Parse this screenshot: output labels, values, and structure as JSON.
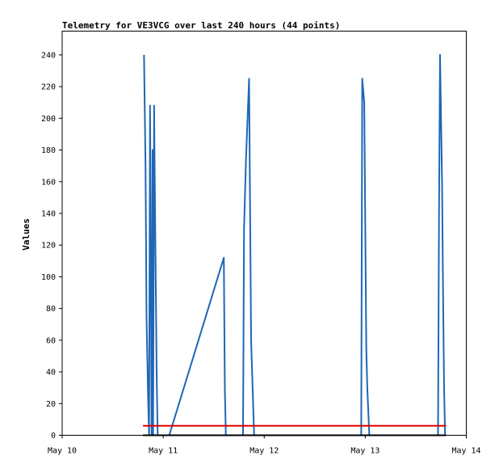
{
  "chart_data": {
    "type": "line",
    "title": "Telemetry for VE3VCG over last 240 hours (44 points)",
    "xlabel": "",
    "ylabel": "Values",
    "x_ticks": [
      "May 10",
      "May 11",
      "May 12",
      "May 13",
      "May 14"
    ],
    "x_tick_positions_days": [
      0,
      1,
      2,
      3,
      4
    ],
    "xlim_days": [
      0,
      4
    ],
    "ylim": [
      0,
      255
    ],
    "y_ticks": [
      0,
      20,
      40,
      60,
      80,
      100,
      120,
      140,
      160,
      180,
      200,
      220,
      240
    ],
    "grid": false,
    "legend": "none",
    "series": [
      {
        "color": "#1f66b5",
        "x": [
          0.81,
          0.825,
          0.835,
          0.85,
          0.86,
          0.87,
          0.875,
          0.885,
          0.89,
          0.895,
          0.9,
          0.91,
          0.915,
          0.925,
          0.935,
          0.945,
          0.95,
          0.955,
          0.965,
          0.975,
          0.985,
          1.06,
          1.6,
          1.61,
          1.62,
          1.79,
          1.8,
          1.82,
          1.85,
          1.87,
          1.9,
          2.96,
          2.97,
          2.99,
          3.01,
          3.02,
          3.04,
          3.72,
          3.73,
          3.74,
          3.76,
          3.77,
          3.78,
          3.79
        ],
        "values": [
          240,
          170,
          75,
          25,
          0,
          208,
          150,
          0,
          50,
          180,
          0,
          208,
          170,
          105,
          40,
          0,
          0,
          0,
          0,
          0,
          0,
          0,
          112,
          30,
          0,
          0,
          130,
          175,
          225,
          60,
          0,
          0,
          225,
          210,
          55,
          30,
          0,
          0,
          140,
          240,
          160,
          90,
          30,
          0
        ]
      },
      {
        "color": "#e00000",
        "x": [
          0.8,
          3.8
        ],
        "values": [
          6,
          6
        ]
      },
      {
        "color": "#000000",
        "x": [
          0.8,
          3.8
        ],
        "values": [
          0,
          0
        ]
      }
    ]
  }
}
